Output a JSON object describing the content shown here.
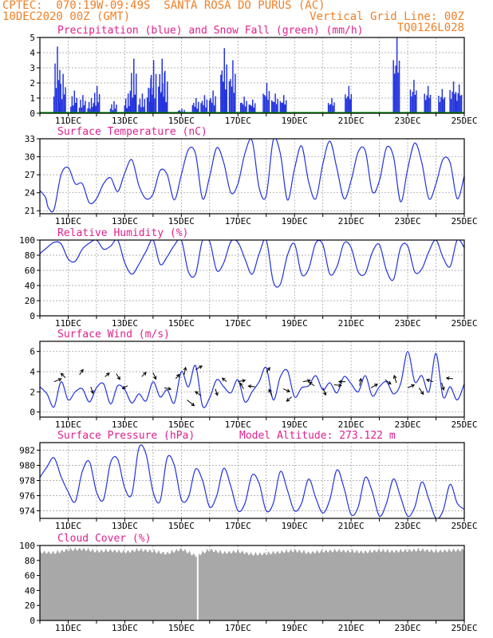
{
  "header": {
    "line1_left": "CPTEC:  070:19W-09:49S  SANTA ROSA DO PURUS (AC)",
    "line2_left": "10DEC2020 00Z (GMT)",
    "line2_right": "Vertical Grid Line: 00Z",
    "line3_right": "TQ0126L028"
  },
  "colors": {
    "header": "#f08028",
    "title": "#e0208c",
    "line": "#2233dd",
    "snow": "#00a000",
    "cloud": "#a8a8a8",
    "grid": "#999999"
  },
  "chart_data": [
    {
      "type": "bar",
      "id": "precip",
      "title": "Precipitation (blue) and Snow Fall (green) (mm/h)",
      "xlabel": "",
      "ylabel": "",
      "x_ticks": [
        "11DEC",
        "13DEC",
        "15DEC",
        "17DEC",
        "19DEC",
        "21DEC",
        "23DEC",
        "25DEC"
      ],
      "ylim": [
        0,
        5
      ],
      "y_ticks": [
        0,
        1,
        2,
        3,
        4,
        5
      ],
      "peaks_day_value": [
        [
          10.6,
          4.4
        ],
        [
          10.8,
          2.6
        ],
        [
          11.2,
          1.5
        ],
        [
          11.5,
          1.2
        ],
        [
          11.8,
          1.0
        ],
        [
          12.0,
          1.8
        ],
        [
          12.6,
          0.8
        ],
        [
          13.1,
          1.3
        ],
        [
          13.3,
          3.6
        ],
        [
          13.6,
          1.3
        ],
        [
          13.9,
          2.3
        ],
        [
          14.0,
          3.5
        ],
        [
          14.3,
          3.6
        ],
        [
          14.4,
          2.8
        ],
        [
          15.0,
          0.3
        ],
        [
          15.5,
          1.0
        ],
        [
          15.8,
          1.2
        ],
        [
          16.1,
          1.5
        ],
        [
          16.5,
          4.3
        ],
        [
          16.8,
          3.5
        ],
        [
          17.2,
          1.1
        ],
        [
          17.5,
          0.9
        ],
        [
          18.0,
          2.0
        ],
        [
          18.3,
          1.3
        ],
        [
          18.6,
          1.2
        ],
        [
          20.3,
          1.0
        ],
        [
          20.9,
          1.8
        ],
        [
          22.6,
          5.0
        ],
        [
          23.2,
          2.2
        ],
        [
          23.7,
          1.8
        ],
        [
          24.2,
          1.6
        ],
        [
          24.6,
          2.1
        ],
        [
          24.8,
          1.9
        ]
      ],
      "snow": []
    },
    {
      "type": "line",
      "id": "temp",
      "title": "Surface Temperature (nC)",
      "x_ticks": [
        "11DEC",
        "13DEC",
        "15DEC",
        "17DEC",
        "19DEC",
        "21DEC",
        "23DEC",
        "25DEC"
      ],
      "ylim": [
        20.5,
        33
      ],
      "y_ticks": [
        21,
        24,
        27,
        30,
        33
      ],
      "x_days": [
        10,
        10.2,
        10.3,
        10.5,
        10.75,
        11,
        11.25,
        11.5,
        11.75,
        12,
        12.25,
        12.5,
        12.75,
        13,
        13.25,
        13.5,
        13.75,
        14,
        14.25,
        14.5,
        14.75,
        15,
        15.25,
        15.5,
        15.75,
        16,
        16.25,
        16.5,
        16.75,
        17,
        17.25,
        17.5,
        17.75,
        18,
        18.25,
        18.5,
        18.75,
        19,
        19.25,
        19.5,
        19.75,
        20,
        20.25,
        20.5,
        20.75,
        21,
        21.25,
        21.5,
        21.75,
        22,
        22.25,
        22.5,
        22.75,
        23,
        23.25,
        23.5,
        23.75,
        24,
        24.25,
        24.5,
        24.75,
        25
      ],
      "values": [
        24.4,
        23.2,
        21.5,
        21.2,
        27.0,
        28.2,
        25.5,
        25.5,
        22.3,
        23.0,
        25.5,
        26.5,
        24.2,
        27.3,
        29.5,
        25.2,
        23.0,
        23.8,
        27.7,
        27.0,
        22.8,
        27.0,
        31.2,
        30.5,
        23.0,
        26.7,
        31.5,
        29.0,
        24.0,
        25.5,
        30.6,
        32.7,
        24.8,
        23.5,
        32.8,
        30.5,
        22.8,
        28.0,
        31.8,
        25.8,
        23.0,
        28.8,
        32.6,
        28.0,
        23.0,
        26.0,
        30.8,
        31.0,
        24.2,
        26.0,
        31.5,
        30.0,
        22.5,
        28.0,
        32.3,
        29.0,
        23.0,
        25.5,
        29.6,
        29.0,
        23.0,
        26.8
      ]
    },
    {
      "type": "line",
      "id": "rh",
      "title": "Relative Humidity (%)",
      "x_ticks": [
        "11DEC",
        "13DEC",
        "15DEC",
        "17DEC",
        "19DEC",
        "21DEC",
        "23DEC",
        "25DEC"
      ],
      "ylim": [
        0,
        100
      ],
      "y_ticks": [
        0,
        20,
        40,
        60,
        80,
        100
      ],
      "x_days": [
        10,
        10.25,
        10.5,
        10.75,
        11,
        11.25,
        11.5,
        11.75,
        12,
        12.25,
        12.5,
        12.75,
        13,
        13.25,
        13.5,
        13.75,
        14,
        14.25,
        14.5,
        14.75,
        15,
        15.25,
        15.5,
        15.75,
        16,
        16.25,
        16.5,
        16.75,
        17,
        17.25,
        17.5,
        17.75,
        18,
        18.25,
        18.5,
        18.75,
        19,
        19.25,
        19.5,
        19.75,
        20,
        20.25,
        20.5,
        20.75,
        21,
        21.25,
        21.5,
        21.75,
        22,
        22.25,
        22.5,
        22.75,
        23,
        23.25,
        23.5,
        23.75,
        24,
        24.25,
        24.5,
        24.75,
        25
      ],
      "values": [
        82,
        90,
        97,
        95,
        75,
        72,
        88,
        96,
        100,
        88,
        92,
        100,
        70,
        55,
        68,
        85,
        100,
        68,
        78,
        93,
        100,
        58,
        55,
        100,
        98,
        60,
        70,
        98,
        97,
        75,
        55,
        82,
        100,
        45,
        42,
        80,
        95,
        55,
        62,
        96,
        94,
        55,
        65,
        96,
        90,
        58,
        56,
        84,
        94,
        60,
        48,
        90,
        92,
        58,
        62,
        85,
        100,
        77,
        65,
        100,
        90
      ]
    },
    {
      "type": "line",
      "id": "wind",
      "title": "Surface Wind (m/s)",
      "x_ticks": [
        "11DEC",
        "13DEC",
        "15DEC",
        "17DEC",
        "19DEC",
        "21DEC",
        "23DEC",
        "25DEC"
      ],
      "ylim": [
        -0.5,
        7
      ],
      "y_ticks": [
        0,
        2,
        4,
        6
      ],
      "x_days": [
        10,
        10.25,
        10.5,
        10.75,
        11,
        11.25,
        11.5,
        11.75,
        12,
        12.25,
        12.5,
        12.75,
        13,
        13.25,
        13.5,
        13.75,
        14,
        14.25,
        14.5,
        14.75,
        15,
        15.25,
        15.5,
        15.75,
        16,
        16.25,
        16.5,
        16.75,
        17,
        17.25,
        17.5,
        17.75,
        18,
        18.25,
        18.5,
        18.75,
        19,
        19.25,
        19.5,
        19.75,
        20,
        20.25,
        20.5,
        20.75,
        21,
        21.25,
        21.5,
        21.75,
        22,
        22.25,
        22.5,
        22.75,
        23,
        23.25,
        23.5,
        23.75,
        24,
        24.25,
        24.5,
        24.75,
        25
      ],
      "values": [
        2.5,
        1.8,
        0.5,
        3.0,
        1.2,
        2.0,
        2.3,
        1.0,
        2.4,
        2.8,
        0.8,
        2.6,
        2.2,
        0.9,
        1.8,
        1.1,
        3.0,
        1.5,
        2.2,
        0.9,
        4.0,
        2.5,
        4.6,
        0.6,
        1.4,
        3.2,
        2.5,
        1.9,
        3.2,
        1.0,
        2.0,
        3.0,
        4.4,
        1.2,
        3.5,
        4.1,
        1.5,
        2.4,
        2.6,
        3.6,
        2.2,
        2.9,
        1.9,
        3.5,
        2.8,
        2.0,
        3.6,
        1.6,
        2.5,
        3.0,
        1.8,
        2.8,
        6.0,
        3.0,
        3.6,
        2.0,
        5.8,
        1.5,
        2.5,
        1.2,
        2.8
      ],
      "arrows": [
        [
          10.5,
          3.0,
          1.0,
          -0.4
        ],
        [
          10.9,
          3.4,
          -0.6,
          -0.6
        ],
        [
          11.4,
          3.7,
          0.5,
          -0.7
        ],
        [
          11.8,
          2.5,
          0.3,
          0.9
        ],
        [
          12.3,
          3.5,
          0.6,
          -0.5
        ],
        [
          12.7,
          3.8,
          0.5,
          0.8
        ],
        [
          13.1,
          2.6,
          -0.7,
          0.4
        ],
        [
          13.6,
          3.5,
          0.6,
          -0.6
        ],
        [
          14.0,
          3.9,
          0.4,
          0.9
        ],
        [
          14.4,
          2.4,
          0.9,
          0.2
        ],
        [
          14.8,
          3.3,
          0.5,
          -0.6
        ],
        [
          15.1,
          3.7,
          0.2,
          -1.0
        ],
        [
          15.5,
          4.2,
          0.9,
          -0.5
        ],
        [
          15.2,
          1.2,
          1.0,
          0.8
        ],
        [
          15.7,
          1.6,
          -0.8,
          -0.6
        ],
        [
          16.2,
          2.3,
          0.3,
          0.9
        ],
        [
          16.6,
          3.0,
          -0.6,
          -0.5
        ],
        [
          17.0,
          3.0,
          1.0,
          -0.2
        ],
        [
          17.2,
          2.3,
          -0.5,
          -0.8
        ],
        [
          17.6,
          2.5,
          -0.9,
          -0.1
        ],
        [
          18.0,
          3.9,
          0.5,
          -0.7
        ],
        [
          18.2,
          1.6,
          -0.4,
          -0.9
        ],
        [
          18.6,
          2.3,
          0.9,
          0.4
        ],
        [
          18.9,
          1.5,
          -0.7,
          0.6
        ],
        [
          19.3,
          3.0,
          1.0,
          -0.2
        ],
        [
          19.7,
          2.6,
          -0.7,
          -0.5
        ],
        [
          20.0,
          2.4,
          0.4,
          1.0
        ],
        [
          20.4,
          2.7,
          1.0,
          0.1
        ],
        [
          20.8,
          3.0,
          -0.9,
          0.0
        ],
        [
          21.3,
          2.6,
          0.2,
          -1.0
        ],
        [
          21.7,
          2.4,
          0.9,
          -0.5
        ],
        [
          22.2,
          3.2,
          0.8,
          0.6
        ],
        [
          22.6,
          2.9,
          -0.3,
          -1.0
        ],
        [
          23.0,
          2.4,
          0.9,
          -0.4
        ],
        [
          23.4,
          2.4,
          0.6,
          0.9
        ],
        [
          23.9,
          3.0,
          -0.9,
          -0.3
        ],
        [
          24.2,
          2.9,
          0.3,
          1.0
        ],
        [
          24.6,
          3.3,
          -0.9,
          -0.1
        ]
      ]
    },
    {
      "type": "line",
      "id": "pres",
      "title": "Surface Pressure (hPa)",
      "annotation": "Model Altitude: 273.122 m",
      "x_ticks": [
        "11DEC",
        "13DEC",
        "15DEC",
        "17DEC",
        "19DEC",
        "21DEC",
        "23DEC",
        "25DEC"
      ],
      "ylim": [
        973,
        983
      ],
      "y_ticks": [
        974,
        976,
        978,
        980,
        982
      ],
      "x_days": [
        10,
        10.25,
        10.5,
        10.75,
        11,
        11.25,
        11.5,
        11.75,
        12,
        12.25,
        12.5,
        12.75,
        13,
        13.25,
        13.5,
        13.75,
        14,
        14.25,
        14.5,
        14.75,
        15,
        15.25,
        15.5,
        15.75,
        16,
        16.25,
        16.5,
        16.75,
        17,
        17.25,
        17.5,
        17.75,
        18,
        18.25,
        18.5,
        18.75,
        19,
        19.25,
        19.5,
        19.75,
        20,
        20.25,
        20.5,
        20.75,
        21,
        21.25,
        21.5,
        21.75,
        22,
        22.25,
        22.5,
        22.75,
        23,
        23.25,
        23.5,
        23.75,
        24,
        24.25,
        24.5,
        24.75,
        25
      ],
      "values": [
        978.4,
        979.8,
        981.0,
        978.5,
        976.5,
        975.2,
        979.2,
        980.5,
        976.5,
        975.5,
        980.4,
        980.8,
        977.0,
        976.2,
        982.3,
        981.5,
        976.5,
        975.3,
        981.0,
        980.0,
        975.5,
        975.8,
        979.5,
        978.0,
        974.5,
        976.0,
        979.6,
        977.2,
        974.0,
        975.0,
        978.7,
        977.6,
        974.0,
        975.0,
        979.2,
        976.7,
        974.0,
        975.0,
        978.2,
        975.7,
        973.7,
        975.5,
        979.4,
        977.0,
        973.5,
        974.5,
        978.4,
        976.5,
        973.3,
        975.0,
        978.2,
        975.8,
        973.3,
        974.5,
        977.8,
        975.5,
        973.0,
        974.0,
        977.5,
        975.0,
        974.2
      ]
    },
    {
      "type": "bar",
      "id": "cloud",
      "title": "Cloud Cover (%)",
      "x_ticks": [
        "11DEC",
        "13DEC",
        "15DEC",
        "17DEC",
        "19DEC",
        "21DEC",
        "23DEC",
        "25DEC"
      ],
      "ylim": [
        0,
        100
      ],
      "y_ticks": [
        0,
        20,
        40,
        60,
        80,
        100
      ],
      "x_days": [
        10,
        10.5,
        11,
        11.5,
        12,
        12.5,
        13,
        13.5,
        14,
        14.5,
        15,
        15.5,
        16,
        16.5,
        17,
        17.5,
        18,
        18.5,
        19,
        19.5,
        20,
        20.5,
        21,
        21.5,
        22,
        22.5,
        23,
        23.5,
        24,
        24.5,
        25
      ],
      "values": [
        95,
        94,
        98,
        99,
        96,
        97,
        95,
        98,
        96,
        93,
        99,
        90,
        98,
        94,
        96,
        92,
        93,
        95,
        97,
        94,
        96,
        97,
        96,
        95,
        97,
        96,
        97,
        98,
        96,
        97,
        98
      ],
      "gaps_days": [
        15.55
      ]
    }
  ]
}
